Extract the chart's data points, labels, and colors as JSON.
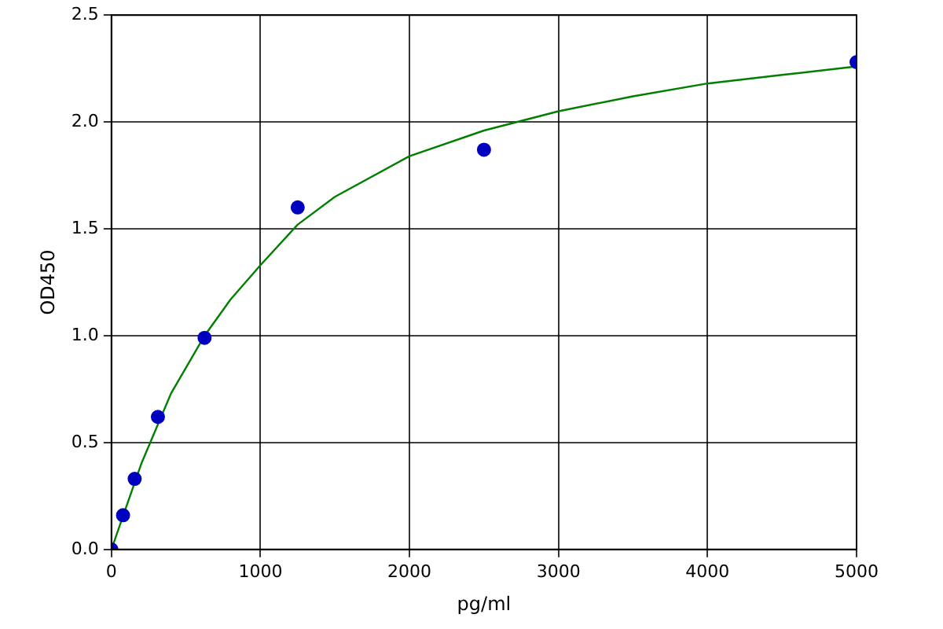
{
  "chart_data": {
    "type": "scatter",
    "xlabel": "pg/ml",
    "ylabel": "OD450",
    "xlim": [
      0,
      5000
    ],
    "ylim": [
      0,
      2.5
    ],
    "xticks": [
      0,
      1000,
      2000,
      3000,
      4000,
      5000
    ],
    "yticks": [
      {
        "value": 0,
        "label": "0.0"
      },
      {
        "value": 0.5,
        "label": "0.5"
      },
      {
        "value": 1,
        "label": "1.0"
      },
      {
        "value": 1.5,
        "label": "1.5"
      },
      {
        "value": 2,
        "label": "2.0"
      },
      {
        "value": 2.5,
        "label": "2.5"
      }
    ],
    "grid": true,
    "legend": false,
    "series": [
      {
        "type": "scatter",
        "color": "#0000bf",
        "marker": "circle",
        "x": [
          0,
          78,
          156,
          312,
          625,
          1250,
          2500,
          5000
        ],
        "values": [
          0,
          0.16,
          0.33,
          0.62,
          0.99,
          1.6,
          1.87,
          2.28
        ]
      },
      {
        "type": "line",
        "color": "#007f00",
        "marker": "none",
        "line_style": "solid",
        "x": [
          0,
          100,
          200,
          400,
          625,
          800,
          1000,
          1250,
          1500,
          2000,
          2500,
          3000,
          3500,
          4000,
          4500,
          5000
        ],
        "values": [
          0,
          0.2,
          0.4,
          0.73,
          1.0,
          1.17,
          1.33,
          1.52,
          1.65,
          1.84,
          1.96,
          2.05,
          2.12,
          2.18,
          2.22,
          2.26
        ]
      }
    ]
  }
}
